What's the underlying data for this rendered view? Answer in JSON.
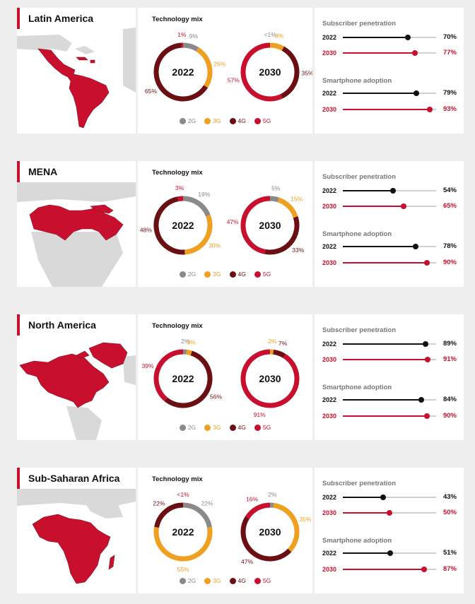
{
  "colors": {
    "2G": "#8a8a8a",
    "3G": "#f0a020",
    "4G": "#6b0f12",
    "5G": "#c8102e"
  },
  "legend": [
    "2G",
    "3G",
    "4G",
    "5G"
  ],
  "mix_title": "Technology mix",
  "stat_titles": [
    "Subscriber penetration",
    "Smartphone adoption"
  ],
  "chart_data": [
    {
      "type": "pie",
      "region": "Latin America",
      "donuts": [
        {
          "year": "2022",
          "slices": [
            {
              "tech": "2G",
              "value": 9,
              "label": "9%"
            },
            {
              "tech": "3G",
              "value": 25,
              "label": "25%"
            },
            {
              "tech": "4G",
              "value": 65,
              "label": "65%"
            },
            {
              "tech": "5G",
              "value": 1,
              "label": "1%"
            }
          ]
        },
        {
          "year": "2030",
          "slices": [
            {
              "tech": "2G",
              "value": 0,
              "label": "<1%"
            },
            {
              "tech": "3G",
              "value": 8,
              "label": "8%"
            },
            {
              "tech": "4G",
              "value": 35,
              "label": "35%"
            },
            {
              "tech": "5G",
              "value": 57,
              "label": "57%"
            }
          ]
        }
      ],
      "stats": [
        {
          "name": "Subscriber penetration",
          "rows": [
            {
              "year": "2022",
              "value": 70,
              "label": "70%"
            },
            {
              "year": "2030",
              "value": 77,
              "label": "77%"
            }
          ]
        },
        {
          "name": "Smartphone adoption",
          "rows": [
            {
              "year": "2022",
              "value": 79,
              "label": "79%"
            },
            {
              "year": "2030",
              "value": 93,
              "label": "93%"
            }
          ]
        }
      ]
    },
    {
      "type": "pie",
      "region": "MENA",
      "donuts": [
        {
          "year": "2022",
          "slices": [
            {
              "tech": "2G",
              "value": 19,
              "label": "19%"
            },
            {
              "tech": "3G",
              "value": 30,
              "label": "30%"
            },
            {
              "tech": "4G",
              "value": 48,
              "label": "48%"
            },
            {
              "tech": "5G",
              "value": 3,
              "label": "3%"
            }
          ]
        },
        {
          "year": "2030",
          "slices": [
            {
              "tech": "2G",
              "value": 5,
              "label": "5%"
            },
            {
              "tech": "3G",
              "value": 15,
              "label": "15%"
            },
            {
              "tech": "4G",
              "value": 33,
              "label": "33%"
            },
            {
              "tech": "5G",
              "value": 47,
              "label": "47%"
            }
          ]
        }
      ],
      "stats": [
        {
          "name": "Subscriber penetration",
          "rows": [
            {
              "year": "2022",
              "value": 54,
              "label": "54%"
            },
            {
              "year": "2030",
              "value": 65,
              "label": "65%"
            }
          ]
        },
        {
          "name": "Smartphone adoption",
          "rows": [
            {
              "year": "2022",
              "value": 78,
              "label": "78%"
            },
            {
              "year": "2030",
              "value": 90,
              "label": "90%"
            }
          ]
        }
      ]
    },
    {
      "type": "pie",
      "region": "North America",
      "donuts": [
        {
          "year": "2022",
          "slices": [
            {
              "tech": "2G",
              "value": 2,
              "label": "2%"
            },
            {
              "tech": "3G",
              "value": 3,
              "label": "3%"
            },
            {
              "tech": "4G",
              "value": 56,
              "label": "56%"
            },
            {
              "tech": "5G",
              "value": 39,
              "label": "39%"
            }
          ]
        },
        {
          "year": "2030",
          "slices": [
            {
              "tech": "2G",
              "value": 0,
              "label": ""
            },
            {
              "tech": "3G",
              "value": 2,
              "label": "2%"
            },
            {
              "tech": "4G",
              "value": 7,
              "label": "7%"
            },
            {
              "tech": "5G",
              "value": 91,
              "label": "91%"
            }
          ]
        }
      ],
      "stats": [
        {
          "name": "Subscriber penetration",
          "rows": [
            {
              "year": "2022",
              "value": 89,
              "label": "89%"
            },
            {
              "year": "2030",
              "value": 91,
              "label": "91%"
            }
          ]
        },
        {
          "name": "Smartphone adoption",
          "rows": [
            {
              "year": "2022",
              "value": 84,
              "label": "84%"
            },
            {
              "year": "2030",
              "value": 90,
              "label": "90%"
            }
          ]
        }
      ]
    },
    {
      "type": "pie",
      "region": "Sub-Saharan Africa",
      "donuts": [
        {
          "year": "2022",
          "slices": [
            {
              "tech": "2G",
              "value": 22,
              "label": "22%"
            },
            {
              "tech": "3G",
              "value": 55,
              "label": "55%"
            },
            {
              "tech": "4G",
              "value": 22,
              "label": "22%"
            },
            {
              "tech": "5G",
              "value": 0,
              "label": "<1%"
            }
          ]
        },
        {
          "year": "2030",
          "slices": [
            {
              "tech": "2G",
              "value": 2,
              "label": "2%"
            },
            {
              "tech": "3G",
              "value": 35,
              "label": "35%"
            },
            {
              "tech": "4G",
              "value": 47,
              "label": "47%"
            },
            {
              "tech": "5G",
              "value": 16,
              "label": "16%"
            }
          ]
        }
      ],
      "stats": [
        {
          "name": "Subscriber penetration",
          "rows": [
            {
              "year": "2022",
              "value": 43,
              "label": "43%"
            },
            {
              "year": "2030",
              "value": 50,
              "label": "50%"
            }
          ]
        },
        {
          "name": "Smartphone adoption",
          "rows": [
            {
              "year": "2022",
              "value": 51,
              "label": "51%"
            },
            {
              "year": "2030",
              "value": 87,
              "label": "87%"
            }
          ]
        }
      ]
    }
  ]
}
